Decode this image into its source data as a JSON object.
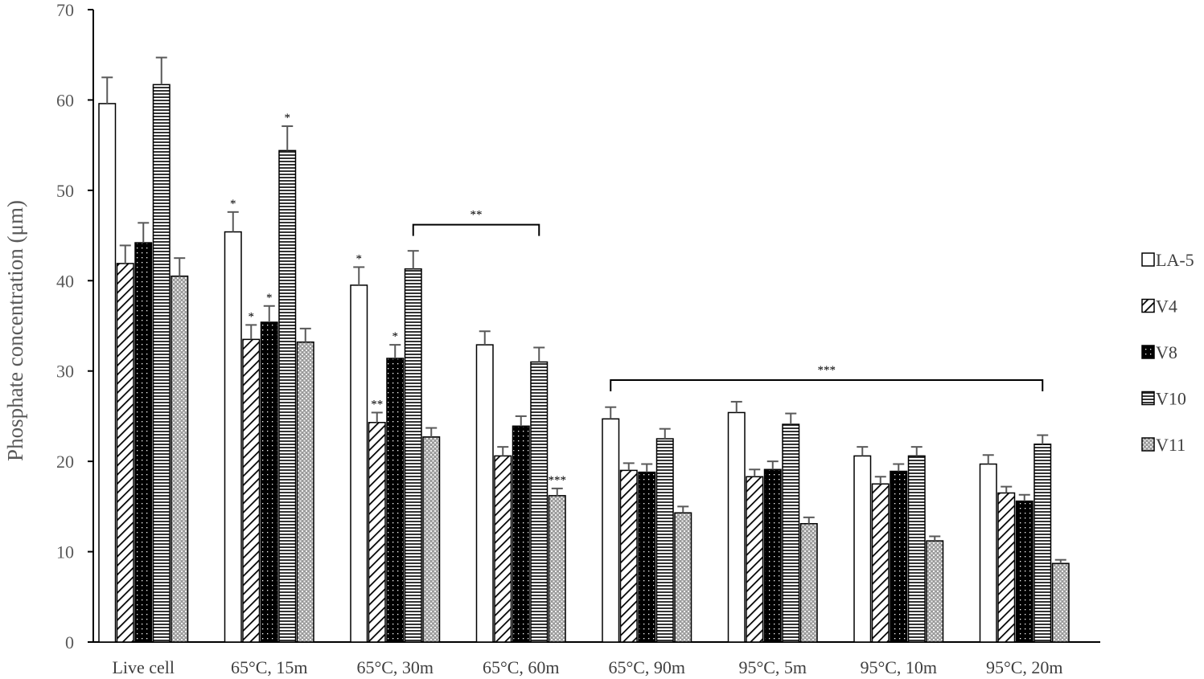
{
  "chart_data": {
    "type": "bar",
    "ylabel": "Phosphate concentration (μm)",
    "xlabel": "",
    "ylim": [
      0,
      70
    ],
    "yticks": [
      0,
      10,
      20,
      30,
      40,
      50,
      60,
      70
    ],
    "grid": false,
    "legend_position": "right",
    "categories": [
      "Live cell",
      "65°C, 15m",
      "65°C, 30m",
      "65°C, 60m",
      "65°C, 90m",
      "95°C, 5m",
      "95°C, 10m",
      "95°C, 20m"
    ],
    "series": [
      {
        "name": "LA-5",
        "pattern": "white",
        "values": [
          59.6,
          45.4,
          39.5,
          32.9,
          24.7,
          25.4,
          20.6,
          19.7
        ],
        "errors": [
          2.9,
          2.2,
          2.0,
          1.5,
          1.3,
          1.2,
          1.0,
          1.0
        ],
        "marks": [
          "",
          "*",
          "*",
          "",
          "",
          "",
          "",
          ""
        ]
      },
      {
        "name": "V4",
        "pattern": "diagonal",
        "values": [
          41.9,
          33.5,
          24.3,
          20.6,
          19.0,
          18.3,
          17.5,
          16.5
        ],
        "errors": [
          2.0,
          1.6,
          1.1,
          1.0,
          0.8,
          0.8,
          0.8,
          0.7
        ],
        "marks": [
          "",
          "*",
          "**",
          "",
          "",
          "",
          "",
          ""
        ]
      },
      {
        "name": "V8",
        "pattern": "dotted",
        "values": [
          44.2,
          35.4,
          31.4,
          23.9,
          18.8,
          19.1,
          18.9,
          15.6
        ],
        "errors": [
          2.2,
          1.8,
          1.5,
          1.1,
          0.9,
          0.9,
          0.8,
          0.7
        ],
        "marks": [
          "",
          "*",
          "*",
          "",
          "",
          "",
          "",
          ""
        ]
      },
      {
        "name": "V10",
        "pattern": "horizontal",
        "values": [
          61.7,
          54.4,
          41.3,
          31.0,
          22.5,
          24.1,
          20.6,
          21.9
        ],
        "errors": [
          3.0,
          2.7,
          2.0,
          1.6,
          1.1,
          1.2,
          1.0,
          1.0
        ],
        "marks": [
          "",
          "*",
          "",
          "",
          "",
          "",
          "",
          ""
        ]
      },
      {
        "name": "V11",
        "pattern": "crosshatch",
        "values": [
          40.5,
          33.2,
          22.7,
          16.2,
          14.3,
          13.1,
          11.2,
          8.7
        ],
        "errors": [
          2.0,
          1.5,
          1.0,
          0.8,
          0.7,
          0.7,
          0.5,
          0.4
        ],
        "marks": [
          "",
          "",
          "",
          "***",
          "",
          "",
          "",
          ""
        ]
      }
    ],
    "brackets": [
      {
        "label": "**",
        "from_category": 2,
        "from_series": 3,
        "to_category": 3,
        "to_series": 3,
        "y": 46.2
      },
      {
        "label": "***",
        "from_category": 4,
        "from_series": 0,
        "to_category": 7,
        "to_series": 3,
        "y": 29.0
      }
    ]
  }
}
